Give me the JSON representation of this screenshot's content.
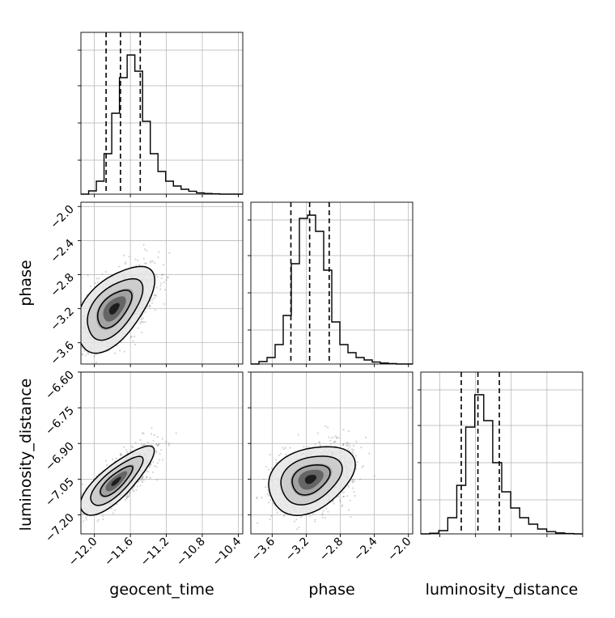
{
  "chart_data": {
    "type": "corner",
    "title": "",
    "grid": true,
    "parameters": [
      {
        "key": "geocent_time",
        "label": "geocent_time",
        "range": [
          -12.15,
          -10.35
        ],
        "ticks": [
          -12.0,
          -11.6,
          -11.2,
          -10.8,
          -10.4
        ],
        "tick_labels": [
          "−12.0",
          "−11.6",
          "−11.2",
          "−10.8",
          "−10.4"
        ],
        "quantiles": [
          -11.87,
          -11.71,
          -11.49
        ],
        "histogram": [
          0.0,
          0.02,
          0.08,
          0.25,
          0.5,
          0.72,
          0.86,
          0.76,
          0.45,
          0.25,
          0.14,
          0.08,
          0.05,
          0.03,
          0.018,
          0.008,
          0.004,
          0.002,
          0,
          0,
          0
        ]
      },
      {
        "key": "phase",
        "label": "phase",
        "range": [
          -3.85,
          -1.95
        ],
        "ticks": [
          -3.6,
          -3.2,
          -2.8,
          -2.4,
          -2.0
        ],
        "tick_labels": [
          "−3.6",
          "−3.2",
          "−2.8",
          "−2.4",
          "−2.0"
        ],
        "quantiles": [
          -3.38,
          -3.16,
          -2.93
        ],
        "histogram": [
          0.0,
          0.015,
          0.04,
          0.12,
          0.3,
          0.62,
          0.9,
          0.92,
          0.82,
          0.58,
          0.26,
          0.12,
          0.07,
          0.04,
          0.025,
          0.012,
          0.006,
          0.003,
          0,
          0
        ]
      },
      {
        "key": "luminosity_distance",
        "label": "luminosity_distance",
        "range": [
          -7.28,
          -6.6
        ],
        "ticks": [
          -7.2,
          -7.05,
          -6.9,
          -6.75,
          -6.6
        ],
        "tick_labels": [
          "−7.20",
          "−7.05",
          "−6.90",
          "−6.75",
          "−6.60"
        ],
        "quantiles": [
          -7.11,
          -7.04,
          -6.95
        ],
        "histogram": [
          0.0,
          0.004,
          0.02,
          0.1,
          0.3,
          0.66,
          0.86,
          0.7,
          0.44,
          0.26,
          0.16,
          0.1,
          0.06,
          0.03,
          0.014,
          0.006,
          0.002,
          0
        ]
      }
    ],
    "pairs": [
      {
        "x": "geocent_time",
        "y": "phase",
        "mean": [
          -11.78,
          -3.2
        ],
        "sd": [
          0.18,
          0.21
        ],
        "corr": 0.55
      },
      {
        "x": "geocent_time",
        "y": "luminosity_distance",
        "mean": [
          -11.76,
          -7.06
        ],
        "sd": [
          0.17,
          0.06
        ],
        "corr": 0.8
      },
      {
        "x": "phase",
        "y": "luminosity_distance",
        "mean": [
          -3.15,
          -7.05
        ],
        "sd": [
          0.21,
          0.06
        ],
        "corr": 0.32
      }
    ],
    "contour_levels": [
      0.39,
      0.86,
      0.99
    ],
    "colors": {
      "line": "#000000",
      "scatter": "#888888",
      "grid": "#b0b0b0"
    }
  }
}
